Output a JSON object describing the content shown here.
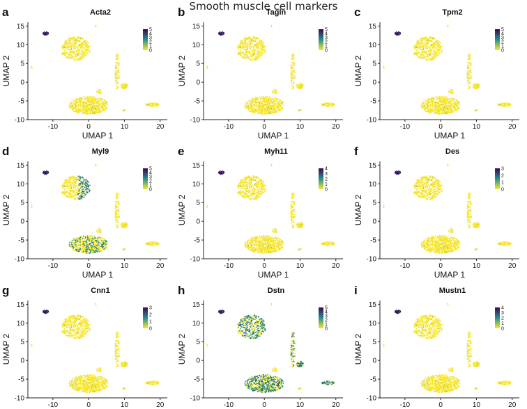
{
  "figure": {
    "title": "Smooth muscle cell markers",
    "xlabel": "UMAP 1",
    "ylabel": "UMAP 2",
    "x_ticks": [
      -10,
      0,
      10,
      20
    ],
    "y_ticks": [
      -10,
      -5,
      0,
      5,
      10,
      15
    ],
    "xlim": [
      -17,
      22
    ],
    "ylim": [
      -10,
      16
    ]
  },
  "colors": {
    "low": "#fde725",
    "mid": "#21918c",
    "high": "#440154",
    "axis": "#222222"
  },
  "chart_data": [
    {
      "type": "scatter",
      "panel_letter": "a",
      "gene": "Acta2",
      "title": "Acta2",
      "legend_ticks": [
        5,
        4,
        3,
        2,
        1,
        0
      ],
      "max_expr": 5,
      "xlabel": "UMAP 1",
      "ylabel": "UMAP 2",
      "highlight_clusters": [
        "top-left-small"
      ],
      "clusters": [
        {
          "name": "left-large",
          "cx": -3.5,
          "cy": 9,
          "rx": 4,
          "ry": 3.2,
          "expr": 0.05
        },
        {
          "name": "bottom-large",
          "cx": 0,
          "cy": -6.2,
          "rx": 5.5,
          "ry": 2.4,
          "expr": 0.05
        },
        {
          "name": "right-strip",
          "cx": 8,
          "cy": 3,
          "rx": 0.6,
          "ry": 5,
          "expr": 0.05
        },
        {
          "name": "right-small",
          "cx": 10,
          "cy": -1,
          "rx": 1,
          "ry": 0.8,
          "expr": 0.05
        },
        {
          "name": "far-right",
          "cx": 18,
          "cy": -6,
          "rx": 2,
          "ry": 0.5,
          "expr": 0.05
        },
        {
          "name": "top-left-small",
          "cx": -12,
          "cy": 13,
          "rx": 0.8,
          "ry": 0.5,
          "expr": 4.5
        }
      ]
    },
    {
      "type": "scatter",
      "panel_letter": "b",
      "gene": "Tagln",
      "title": "Tagln",
      "legend_ticks": [
        5,
        4,
        3,
        2,
        1,
        0
      ],
      "max_expr": 5,
      "xlabel": "UMAP 1",
      "ylabel": "UMAP 2",
      "highlight_clusters": [
        "top-left-small"
      ]
    },
    {
      "type": "scatter",
      "panel_letter": "c",
      "gene": "Tpm2",
      "title": "Tpm2",
      "legend_ticks": [
        5,
        4,
        3,
        2,
        1,
        0
      ],
      "max_expr": 5,
      "xlabel": "UMAP 1",
      "ylabel": "UMAP 2",
      "highlight_clusters": [
        "top-left-small"
      ]
    },
    {
      "type": "scatter",
      "panel_letter": "d",
      "gene": "Myl9",
      "title": "Myl9",
      "legend_ticks": [
        5,
        4,
        3,
        2,
        1,
        0
      ],
      "max_expr": 5,
      "xlabel": "UMAP 1",
      "ylabel": "UMAP 2",
      "highlight_clusters": [
        "top-left-small",
        "left-large-partial",
        "bottom-large-sparse"
      ]
    },
    {
      "type": "scatter",
      "panel_letter": "e",
      "gene": "Myh11",
      "title": "Myh11",
      "legend_ticks": [
        4,
        3,
        2,
        1,
        0
      ],
      "max_expr": 4,
      "xlabel": "UMAP 1",
      "ylabel": "UMAP 2",
      "highlight_clusters": [
        "top-left-small"
      ]
    },
    {
      "type": "scatter",
      "panel_letter": "f",
      "gene": "Des",
      "title": "Des",
      "legend_ticks": [
        3,
        2,
        1,
        0
      ],
      "max_expr": 3,
      "xlabel": "UMAP 1",
      "ylabel": "UMAP 2",
      "highlight_clusters": [
        "top-left-small"
      ]
    },
    {
      "type": "scatter",
      "panel_letter": "g",
      "gene": "Cnn1",
      "title": "Cnn1",
      "legend_ticks": [
        3,
        2,
        1,
        0
      ],
      "max_expr": 3,
      "xlabel": "UMAP 1",
      "ylabel": "UMAP 2",
      "highlight_clusters": [
        "top-left-small"
      ]
    },
    {
      "type": "scatter",
      "panel_letter": "h",
      "gene": "Dstn",
      "title": "Dstn",
      "legend_ticks": [
        5,
        4,
        3,
        2,
        1,
        0
      ],
      "max_expr": 5,
      "xlabel": "UMAP 1",
      "ylabel": "UMAP 2",
      "highlight_clusters": [
        "top-left-small",
        "left-large",
        "bottom-large",
        "far-right",
        "right-strip"
      ]
    },
    {
      "type": "scatter",
      "panel_letter": "i",
      "gene": "Mustn1",
      "title": "Mustn1",
      "legend_ticks": [
        4,
        3,
        2,
        1,
        0
      ],
      "max_expr": 4,
      "xlabel": "UMAP 1",
      "ylabel": "UMAP 2",
      "highlight_clusters": [
        "top-left-small"
      ]
    }
  ]
}
